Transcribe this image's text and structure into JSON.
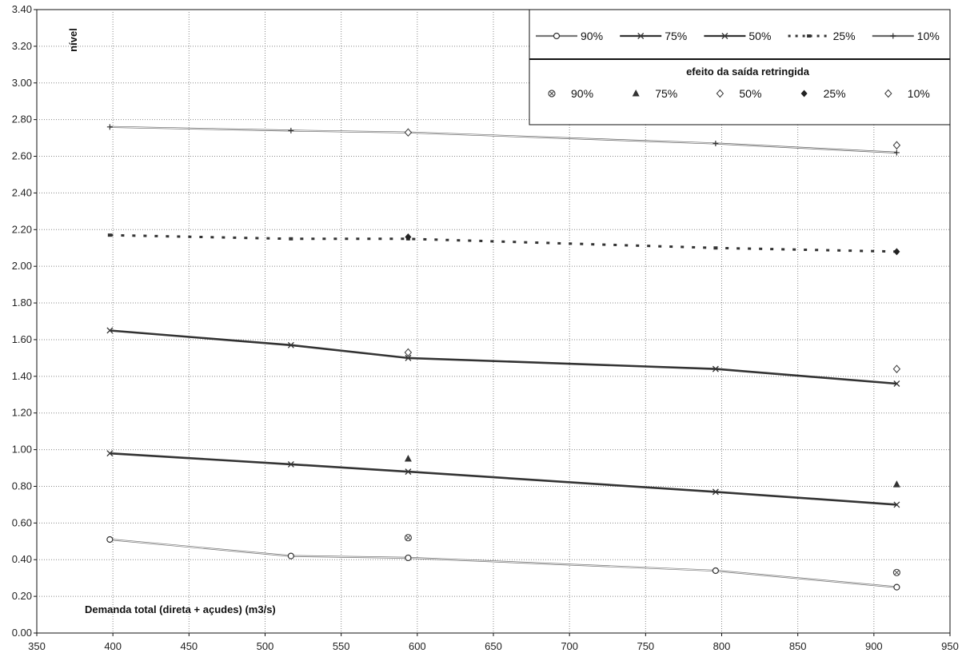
{
  "chart_data": {
    "type": "line",
    "title": "",
    "xlabel": "Demanda total (direta + açudes) (m3/s)",
    "ylabel": "nível",
    "xlim": [
      350,
      950
    ],
    "ylim": [
      0,
      3.4
    ],
    "xticks": [
      350,
      400,
      450,
      500,
      550,
      600,
      650,
      700,
      750,
      800,
      850,
      900,
      950
    ],
    "yticks": [
      0,
      0.2,
      0.4,
      0.6,
      0.8,
      1.0,
      1.2,
      1.4,
      1.6,
      1.8,
      2.0,
      2.2,
      2.4,
      2.6,
      2.8,
      3.0,
      3.2,
      3.4
    ],
    "grid": true,
    "legend_placement": "top-right",
    "x": [
      398,
      517,
      594,
      796,
      915
    ],
    "series": [
      {
        "name": "90%",
        "values": [
          0.51,
          0.42,
          0.41,
          0.34,
          0.25
        ],
        "marker": "circle",
        "color": "#777777"
      },
      {
        "name": "75%",
        "values": [
          0.98,
          0.92,
          0.88,
          0.77,
          0.7
        ],
        "marker": "x",
        "color": "#333333"
      },
      {
        "name": "50%",
        "values": [
          1.65,
          1.57,
          1.5,
          1.44,
          1.36
        ],
        "marker": "x",
        "color": "#333333"
      },
      {
        "name": "25%",
        "values": [
          2.17,
          2.15,
          2.15,
          2.1,
          2.08
        ],
        "marker": "dot",
        "color": "#333333",
        "dashed": true
      },
      {
        "name": "10%",
        "values": [
          2.76,
          2.74,
          2.73,
          2.67,
          2.62
        ],
        "marker": "plus",
        "color": "#666666"
      }
    ],
    "restricted_title": "efeito da saída retringida",
    "restricted_series": [
      {
        "name": "90%",
        "marker": "circle-x",
        "points": [
          [
            594,
            0.52
          ],
          [
            915,
            0.33
          ]
        ]
      },
      {
        "name": "75%",
        "marker": "triangle",
        "points": [
          [
            594,
            0.95
          ],
          [
            915,
            0.81
          ]
        ]
      },
      {
        "name": "50%",
        "marker": "diamond-open",
        "points": [
          [
            594,
            1.53
          ],
          [
            915,
            1.44
          ]
        ]
      },
      {
        "name": "25%",
        "marker": "diamond-filled",
        "points": [
          [
            594,
            2.16
          ],
          [
            915,
            2.08
          ]
        ]
      },
      {
        "name": "10%",
        "marker": "diamond-open",
        "points": [
          [
            594,
            2.73
          ],
          [
            915,
            2.66
          ]
        ]
      }
    ]
  }
}
